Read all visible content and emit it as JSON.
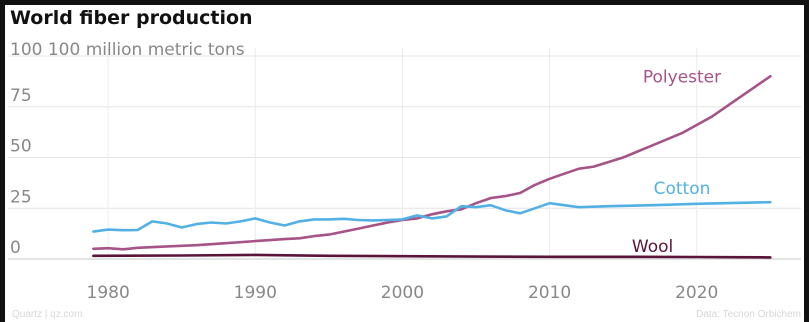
{
  "chart_data": {
    "type": "line",
    "title": "World fiber production",
    "ylabel": "100 million metric tons",
    "xlabel": "",
    "xlim": [
      1977,
      2026
    ],
    "ylim": [
      0,
      100
    ],
    "x_ticks": [
      1980,
      1990,
      2000,
      2010,
      2020
    ],
    "y_ticks": [
      0,
      25,
      50,
      75
    ],
    "grid": true,
    "colors": {
      "Polyester": "#a65388",
      "Cotton": "#53b0e5",
      "Wool": "#5a1439"
    },
    "series": [
      {
        "name": "Polyester",
        "label_at": [
          2019,
          87
        ],
        "points": [
          [
            1979,
            5
          ],
          [
            1980,
            5.3
          ],
          [
            1981,
            4.8
          ],
          [
            1982,
            5.5
          ],
          [
            1984,
            6.2
          ],
          [
            1986,
            6.8
          ],
          [
            1988,
            7.8
          ],
          [
            1990,
            8.8
          ],
          [
            1992,
            9.8
          ],
          [
            1993,
            10.2
          ],
          [
            1994,
            11.3
          ],
          [
            1995,
            12
          ],
          [
            1996,
            13.5
          ],
          [
            1997,
            15
          ],
          [
            1998,
            16.5
          ],
          [
            1999,
            18
          ],
          [
            2000,
            19.2
          ],
          [
            2001,
            20
          ],
          [
            2002,
            22
          ],
          [
            2003,
            23.5
          ],
          [
            2004,
            24.5
          ],
          [
            2005,
            27.5
          ],
          [
            2006,
            30
          ],
          [
            2007,
            31
          ],
          [
            2008,
            32.5
          ],
          [
            2009,
            36.5
          ],
          [
            2010,
            39.5
          ],
          [
            2011,
            42
          ],
          [
            2012,
            44.5
          ],
          [
            2013,
            45.5
          ],
          [
            2015,
            50
          ],
          [
            2017,
            56
          ],
          [
            2019,
            62
          ],
          [
            2021,
            70
          ],
          [
            2023,
            80
          ],
          [
            2025,
            90
          ]
        ]
      },
      {
        "name": "Cotton",
        "label_at": [
          2019,
          32
        ],
        "points": [
          [
            1979,
            13.5
          ],
          [
            1980,
            14.5
          ],
          [
            1981,
            14.2
          ],
          [
            1982,
            14.3
          ],
          [
            1983,
            18.5
          ],
          [
            1984,
            17.5
          ],
          [
            1985,
            15.5
          ],
          [
            1986,
            17.2
          ],
          [
            1987,
            18
          ],
          [
            1988,
            17.5
          ],
          [
            1989,
            18.5
          ],
          [
            1990,
            20
          ],
          [
            1991,
            18
          ],
          [
            1992,
            16.5
          ],
          [
            1993,
            18.5
          ],
          [
            1994,
            19.5
          ],
          [
            1995,
            19.5
          ],
          [
            1996,
            19.8
          ],
          [
            1997,
            19.2
          ],
          [
            1998,
            19
          ],
          [
            1999,
            19.2
          ],
          [
            2000,
            19.5
          ],
          [
            2001,
            21.5
          ],
          [
            2002,
            20
          ],
          [
            2003,
            21
          ],
          [
            2004,
            26
          ],
          [
            2005,
            25.5
          ],
          [
            2006,
            26.5
          ],
          [
            2007,
            24
          ],
          [
            2008,
            22.5
          ],
          [
            2009,
            25
          ],
          [
            2010,
            27.5
          ],
          [
            2011,
            26.5
          ],
          [
            2012,
            25.5
          ],
          [
            2014,
            26
          ],
          [
            2017,
            26.5
          ],
          [
            2020,
            27.2
          ],
          [
            2025,
            28
          ]
        ]
      },
      {
        "name": "Wool",
        "label_at": [
          2017,
          3.5
        ],
        "points": [
          [
            1979,
            1.6
          ],
          [
            1985,
            1.7
          ],
          [
            1990,
            2
          ],
          [
            1995,
            1.6
          ],
          [
            2000,
            1.4
          ],
          [
            2005,
            1.2
          ],
          [
            2010,
            1.1
          ],
          [
            2015,
            1.1
          ],
          [
            2020,
            1
          ],
          [
            2025,
            0.8
          ]
        ]
      }
    ]
  },
  "footer": {
    "source_left": "Quartz | qz.com",
    "source_right": "Data: Tecnon Orbichem"
  }
}
